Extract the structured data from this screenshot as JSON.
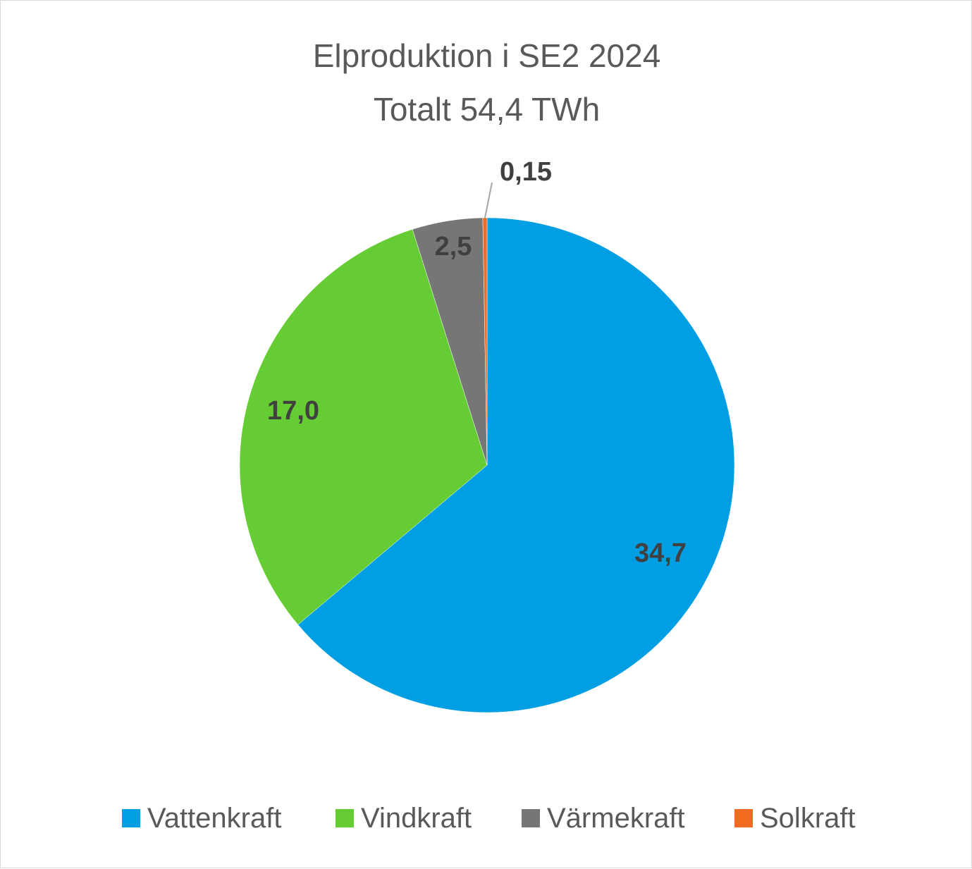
{
  "chart_data": {
    "type": "pie",
    "title": "Elproduktion i SE2 2024",
    "subtitle": "Totalt 54,4 TWh",
    "categories": [
      "Vattenkraft",
      "Vindkraft",
      "Värmekraft",
      "Solkraft"
    ],
    "values": [
      34.7,
      17.0,
      2.5,
      0.15
    ],
    "data_labels": [
      "34,7",
      "17,0",
      "2,5",
      "0,15"
    ],
    "colors": [
      "#009fe3",
      "#66cc33",
      "#767676",
      "#f26b21"
    ],
    "legend": "bottom"
  }
}
